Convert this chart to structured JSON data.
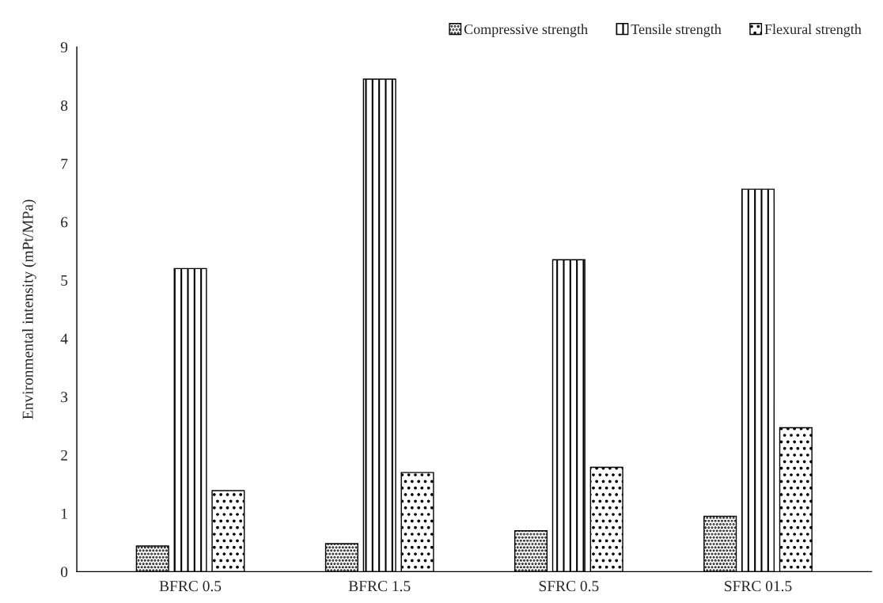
{
  "chart_data": {
    "type": "bar",
    "ylabel": "Environmental intensity (mPt/MPa)",
    "categories": [
      "BFRC 0.5",
      "BFRC 1.5",
      "SFRC 0.5",
      "SFRC 01.5"
    ],
    "series": [
      {
        "name": "Compressive strength",
        "color": "#000000",
        "values": [
          0.44,
          0.48,
          0.7,
          0.95
        ]
      },
      {
        "name": "Tensile strength",
        "color": "#000000",
        "values": [
          5.2,
          8.45,
          5.35,
          6.56
        ]
      },
      {
        "name": "Flexural strength",
        "color": "#000000",
        "values": [
          1.39,
          1.7,
          1.79,
          2.47
        ]
      }
    ],
    "ylim": [
      0,
      9
    ],
    "yticks": [
      0,
      1,
      2,
      3,
      4,
      5,
      6,
      7,
      8,
      9
    ],
    "grid": false,
    "legend": "top right"
  }
}
